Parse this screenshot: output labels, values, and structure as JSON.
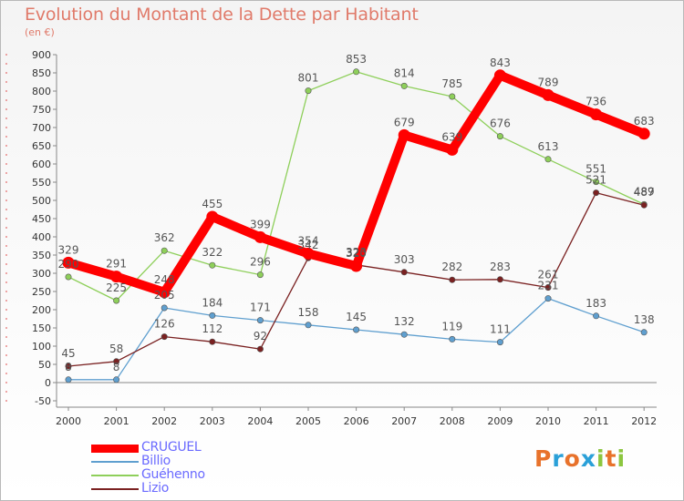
{
  "title": "Evolution du Montant de la Dette par Habitant",
  "subtitle": "(en €)",
  "logo": {
    "letters": [
      "P",
      "r",
      "o",
      "x",
      "i",
      "t",
      "i"
    ],
    "colors": [
      "#e8722b",
      "#2aa0d8",
      "#e8722b",
      "#2aa0d8",
      "#8cc63f",
      "#e8722b",
      "#8cc63f"
    ]
  },
  "chart_data": {
    "type": "line",
    "title": "Evolution du Montant de la Dette par Habitant",
    "subtitle": "(en €)",
    "x": [
      "2000",
      "2001",
      "2002",
      "2003",
      "2004",
      "2005",
      "2006",
      "2007",
      "2008",
      "2009",
      "2010",
      "2011",
      "2012"
    ],
    "ylim": [
      -50,
      900
    ],
    "yticks": [
      -50,
      0,
      50,
      100,
      150,
      200,
      250,
      300,
      350,
      400,
      450,
      500,
      550,
      600,
      650,
      700,
      750,
      800,
      850,
      900
    ],
    "grid": false,
    "legend_position": "bottom-left",
    "series": [
      {
        "name": "CRUGUEL",
        "color": "#ff0000",
        "width": "thick",
        "x": [
          "2000",
          "2001",
          "2002",
          "2003",
          "2004",
          "2005",
          "2006",
          "2007",
          "2008",
          "2009",
          "2010",
          "2011",
          "2012"
        ],
        "values": [
          329,
          291,
          248,
          455,
          399,
          354,
          320,
          679,
          639,
          843,
          789,
          736,
          683
        ],
        "labels": [
          "329",
          "291",
          "248",
          "455",
          "399",
          "354",
          "320",
          "679",
          "639",
          "843",
          "789",
          "736",
          "683"
        ]
      },
      {
        "name": "Billio",
        "color": "#5f9fcf",
        "width": "thin",
        "x": [
          "2000",
          "2001",
          "2002",
          "2003",
          "2004",
          "2005",
          "2006",
          "2007",
          "2008",
          "2009",
          "2010",
          "2011",
          "2012"
        ],
        "values": [
          8,
          8,
          205,
          184,
          171,
          158,
          145,
          132,
          119,
          111,
          231,
          183,
          138
        ],
        "labels": [
          "8",
          "8",
          "205",
          "184",
          "171",
          "158",
          "145",
          "132",
          "119",
          "111",
          "231",
          "183",
          "138"
        ]
      },
      {
        "name": "Guéhenno",
        "color": "#8ecf5a",
        "width": "thin",
        "x": [
          "2000",
          "2001",
          "2002",
          "2003",
          "2004",
          "2005",
          "2006",
          "2007",
          "2008",
          "2009",
          "2010",
          "2011",
          "2012"
        ],
        "values": [
          290,
          225,
          362,
          322,
          296,
          801,
          853,
          814,
          785,
          676,
          613,
          551,
          489
        ],
        "labels": [
          "290",
          "225",
          "362",
          "322",
          "296",
          "801",
          "853",
          "814",
          "785",
          "676",
          "613",
          "551",
          "489"
        ]
      },
      {
        "name": "Lizio",
        "color": "#7a2121",
        "width": "thin",
        "x": [
          "2000",
          "2001",
          "2002",
          "2003",
          "2004",
          "2005",
          "2006",
          "2007",
          "2008",
          "2009",
          "2010",
          "2011",
          "2012"
        ],
        "values": [
          45,
          58,
          126,
          112,
          92,
          342,
          323,
          303,
          282,
          283,
          261,
          521,
          487
        ],
        "labels": [
          "45",
          "58",
          "126",
          "112",
          "92",
          "342",
          "323",
          "303",
          "282",
          "283",
          "261",
          "521",
          "487"
        ]
      }
    ]
  }
}
